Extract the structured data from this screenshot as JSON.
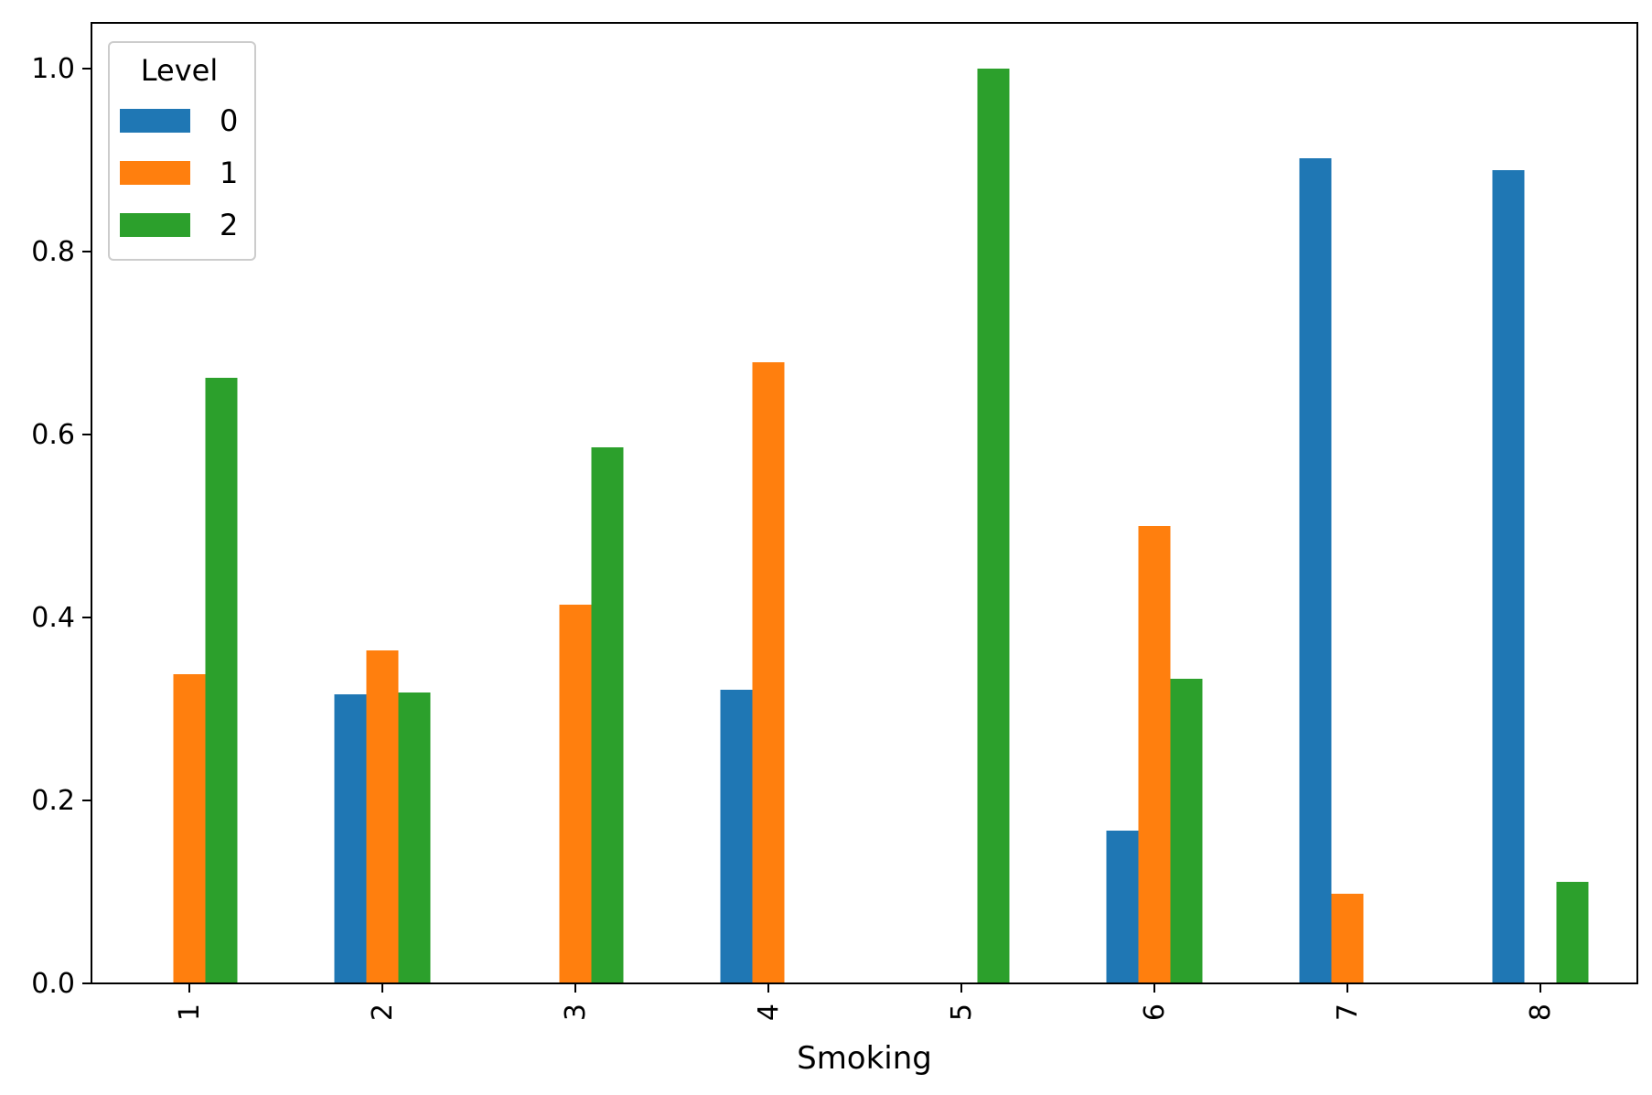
{
  "chart_data": {
    "type": "bar",
    "title": "",
    "xlabel": "Smoking",
    "ylabel": "",
    "categories": [
      "1",
      "2",
      "3",
      "4",
      "5",
      "6",
      "7",
      "8"
    ],
    "yticks": [
      "0.0",
      "0.2",
      "0.4",
      "0.6",
      "0.8",
      "1.0"
    ],
    "ylim": [
      0,
      1.05
    ],
    "legend": {
      "title": "Level",
      "placement": "top-left"
    },
    "series": [
      {
        "name": "0",
        "color": "#1f77b4",
        "values": [
          0,
          0.316,
          0,
          0.321,
          0,
          0.167,
          0.902,
          0.889
        ]
      },
      {
        "name": "1",
        "color": "#ff7f0e",
        "values": [
          0.338,
          0.364,
          0.414,
          0.679,
          0,
          0.5,
          0.098,
          0
        ]
      },
      {
        "name": "2",
        "color": "#2ca02c",
        "values": [
          0.662,
          0.318,
          0.586,
          0,
          1.0,
          0.333,
          0,
          0.111
        ]
      }
    ],
    "grid": false
  }
}
